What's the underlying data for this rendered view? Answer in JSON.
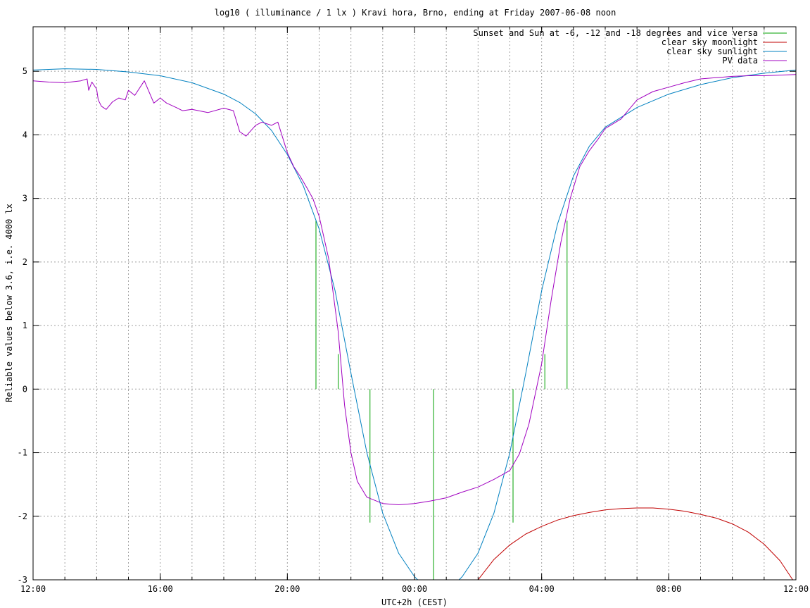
{
  "chart_data": {
    "type": "line",
    "title": "log10 ( illuminance / 1 lx ) Kravi hora, Brno, ending at Friday 2007-06-08 noon",
    "xlabel": "UTC+2h (CEST)",
    "ylabel": "Reliable values below 3.6, i.e. 4000 lx",
    "x_unit": "hours since Thursday 12:00",
    "xlim": [
      0,
      24
    ],
    "ylim": [
      -3,
      5.7
    ],
    "x_ticks": [
      {
        "value": 0,
        "label": "12:00"
      },
      {
        "value": 4,
        "label": "16:00"
      },
      {
        "value": 8,
        "label": "20:00"
      },
      {
        "value": 12,
        "label": "00:00"
      },
      {
        "value": 16,
        "label": "04:00"
      },
      {
        "value": 20,
        "label": "08:00"
      },
      {
        "value": 24,
        "label": "12:00"
      }
    ],
    "y_ticks": [
      {
        "value": 5,
        "label": "5"
      },
      {
        "value": 4,
        "label": "4"
      },
      {
        "value": 3,
        "label": "3"
      },
      {
        "value": 2,
        "label": "2"
      },
      {
        "value": 1,
        "label": "1"
      },
      {
        "value": 0,
        "label": "0"
      },
      {
        "value": -1,
        "label": "-1"
      },
      {
        "value": -2,
        "label": "-2"
      },
      {
        "value": -3,
        "label": "-3"
      }
    ],
    "grid": true,
    "grid_x_minor_step": 1,
    "grid_y_step": 1,
    "legend_position": "top-right",
    "series": [
      {
        "name": "Sunset and Sun at -6, -12 and -18 degrees and vice versa",
        "color": "#00a000",
        "style": "impulses",
        "impulses": [
          {
            "x": 8.9,
            "from": 0,
            "to": 2.65
          },
          {
            "x": 9.6,
            "from": 0,
            "to": 0.55
          },
          {
            "x": 10.6,
            "from": -2.1,
            "to": 0
          },
          {
            "x": 12.6,
            "from": -3,
            "to": 0
          },
          {
            "x": 15.1,
            "from": -2.1,
            "to": 0
          },
          {
            "x": 16.1,
            "from": 0,
            "to": 0.55
          },
          {
            "x": 16.8,
            "from": 0,
            "to": 2.65
          }
        ]
      },
      {
        "name": "clear sky moonlight",
        "color": "#c00000",
        "style": "line",
        "x": [
          14.0,
          14.5,
          15.0,
          15.5,
          16.0,
          16.5,
          17.0,
          17.5,
          18.0,
          18.5,
          19.0,
          19.5,
          20.0,
          20.5,
          21.0,
          21.5,
          22.0,
          22.5,
          23.0,
          23.5,
          23.9
        ],
        "y": [
          -3.0,
          -2.68,
          -2.45,
          -2.28,
          -2.16,
          -2.06,
          -1.99,
          -1.94,
          -1.9,
          -1.88,
          -1.87,
          -1.87,
          -1.89,
          -1.92,
          -1.97,
          -2.03,
          -2.12,
          -2.25,
          -2.44,
          -2.7,
          -3.0
        ]
      },
      {
        "name": "clear sky sunlight",
        "color": "#0080c0",
        "style": "line",
        "x": [
          0,
          1,
          2,
          3,
          4,
          5,
          6,
          6.5,
          7,
          7.5,
          8,
          8.5,
          9,
          9.5,
          10,
          10.5,
          11,
          11.5,
          12,
          12.5,
          13,
          13.5,
          14,
          14.5,
          15,
          15.5,
          16,
          16.5,
          17,
          17.5,
          18,
          19,
          20,
          21,
          22,
          23,
          24
        ],
        "y": [
          5.02,
          5.04,
          5.03,
          4.99,
          4.93,
          4.82,
          4.64,
          4.51,
          4.33,
          4.07,
          3.69,
          3.2,
          2.52,
          1.55,
          0.25,
          -1.0,
          -1.95,
          -2.58,
          -2.95,
          -3.2,
          -3.2,
          -2.95,
          -2.58,
          -1.95,
          -1.0,
          0.25,
          1.55,
          2.6,
          3.35,
          3.82,
          4.12,
          4.43,
          4.64,
          4.79,
          4.9,
          4.97,
          5.02
        ]
      },
      {
        "name": "PV data",
        "color": "#a000c0",
        "style": "line",
        "x": [
          0,
          0.5,
          1,
          1.5,
          1.7,
          1.75,
          1.85,
          2,
          2.05,
          2.15,
          2.3,
          2.5,
          2.7,
          2.9,
          3.0,
          3.2,
          3.5,
          3.8,
          4.0,
          4.2,
          4.5,
          4.7,
          5.0,
          5.5,
          6.0,
          6.3,
          6.5,
          6.7,
          7.0,
          7.2,
          7.5,
          7.7,
          8.0,
          8.2,
          8.4,
          8.6,
          8.8,
          9.0,
          9.3,
          9.6,
          9.8,
          10.0,
          10.2,
          10.5,
          11.0,
          11.5,
          12.0,
          12.5,
          13.0,
          13.5,
          14.0,
          14.5,
          15.0,
          15.3,
          15.6,
          16.0,
          16.3,
          16.6,
          16.9,
          17.2,
          17.5,
          17.8,
          18.0,
          18.5,
          19.0,
          19.5,
          20.0,
          20.5,
          21.0,
          21.5,
          22.0,
          22.5,
          23.0,
          23.5,
          24.0
        ],
        "y": [
          4.85,
          4.83,
          4.82,
          4.85,
          4.88,
          4.7,
          4.83,
          4.72,
          4.55,
          4.45,
          4.4,
          4.52,
          4.58,
          4.55,
          4.7,
          4.62,
          4.85,
          4.5,
          4.58,
          4.5,
          4.43,
          4.38,
          4.4,
          4.35,
          4.42,
          4.38,
          4.05,
          3.98,
          4.15,
          4.2,
          4.15,
          4.2,
          3.72,
          3.5,
          3.35,
          3.18,
          3.0,
          2.72,
          2.05,
          0.9,
          -0.25,
          -1.0,
          -1.45,
          -1.7,
          -1.8,
          -1.82,
          -1.8,
          -1.76,
          -1.71,
          -1.62,
          -1.54,
          -1.42,
          -1.28,
          -1.02,
          -0.55,
          0.4,
          1.4,
          2.3,
          3.0,
          3.5,
          3.75,
          3.95,
          4.1,
          4.25,
          4.55,
          4.68,
          4.75,
          4.82,
          4.88,
          4.9,
          4.92,
          4.93,
          4.93,
          4.94,
          4.95
        ]
      }
    ]
  }
}
